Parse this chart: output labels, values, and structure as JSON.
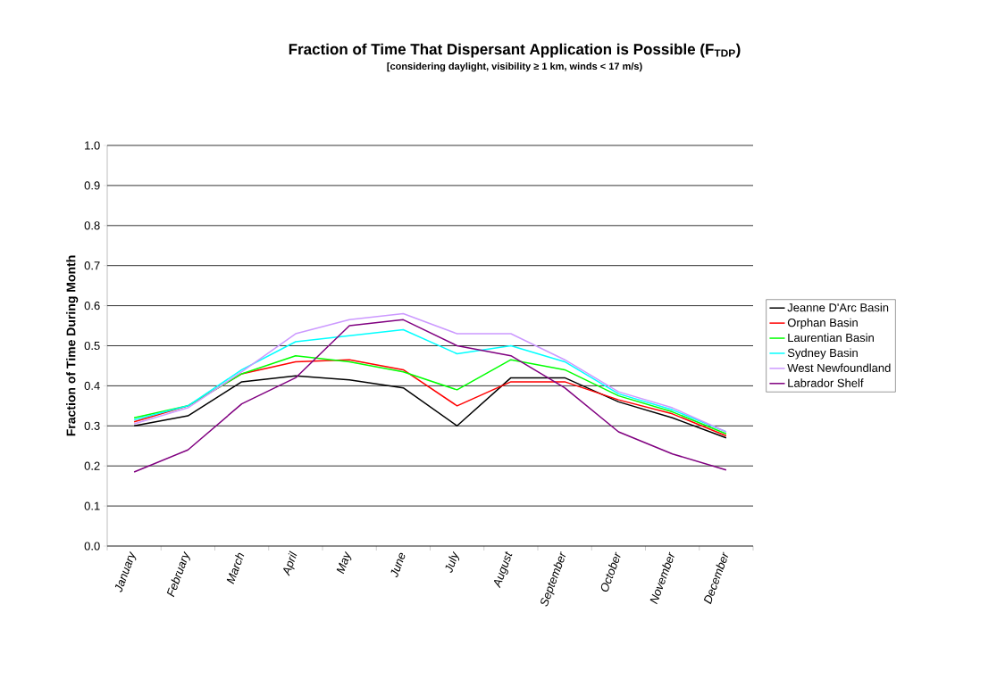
{
  "chart_data": {
    "type": "line",
    "title": "Fraction of Time That Dispersant Application is Possible (F$_{TDP}$)",
    "subtitle": "[considering daylight,  visibility ≥ 1 km, winds < 17 m/s)",
    "ylabel": "Fraction of Time During Month",
    "categories": [
      "January",
      "February",
      "March",
      "April",
      "May",
      "June",
      "July",
      "August",
      "September",
      "October",
      "November",
      "December"
    ],
    "series": [
      {
        "name": "Jeanne D'Arc Basin",
        "color": "#000000",
        "values": [
          0.3,
          0.325,
          0.41,
          0.425,
          0.415,
          0.395,
          0.3,
          0.42,
          0.42,
          0.36,
          0.32,
          0.27
        ]
      },
      {
        "name": "Orphan Basin",
        "color": "#ff0000",
        "values": [
          0.31,
          0.35,
          0.43,
          0.46,
          0.465,
          0.44,
          0.35,
          0.41,
          0.41,
          0.365,
          0.33,
          0.275
        ]
      },
      {
        "name": "Laurentian Basin",
        "color": "#00ff00",
        "values": [
          0.32,
          0.35,
          0.43,
          0.475,
          0.46,
          0.435,
          0.39,
          0.465,
          0.44,
          0.375,
          0.335,
          0.28
        ]
      },
      {
        "name": "Sydney Basin",
        "color": "#00ffff",
        "values": [
          0.315,
          0.35,
          0.44,
          0.51,
          0.525,
          0.54,
          0.48,
          0.5,
          0.46,
          0.38,
          0.34,
          0.285
        ]
      },
      {
        "name": "West Newfoundland",
        "color": "#cc99ff",
        "values": [
          0.305,
          0.345,
          0.435,
          0.53,
          0.565,
          0.58,
          0.53,
          0.53,
          0.465,
          0.385,
          0.345,
          0.285
        ]
      },
      {
        "name": "Labrador Shelf",
        "color": "#800080",
        "values": [
          0.185,
          0.24,
          0.355,
          0.42,
          0.55,
          0.565,
          0.5,
          0.475,
          0.395,
          0.285,
          0.23,
          0.19
        ]
      }
    ],
    "ylim": [
      0,
      1
    ],
    "yticks": [
      {
        "value": 0,
        "label": "0.0"
      },
      {
        "value": 0.1,
        "label": "0.1"
      },
      {
        "value": 0.2,
        "label": "0.2"
      },
      {
        "value": 0.3,
        "label": "0.3"
      },
      {
        "value": 0.4,
        "label": "0.4"
      },
      {
        "value": 0.5,
        "label": "0.5"
      },
      {
        "value": 0.6,
        "label": "0.6"
      },
      {
        "value": 0.7,
        "label": "0.7"
      },
      {
        "value": 0.8,
        "label": "0.8"
      },
      {
        "value": 0.9,
        "label": "0.9"
      },
      {
        "value": 1,
        "label": "1.0"
      }
    ],
    "grid": "y",
    "legend": "right",
    "marker": "none",
    "line_style": "solid"
  }
}
